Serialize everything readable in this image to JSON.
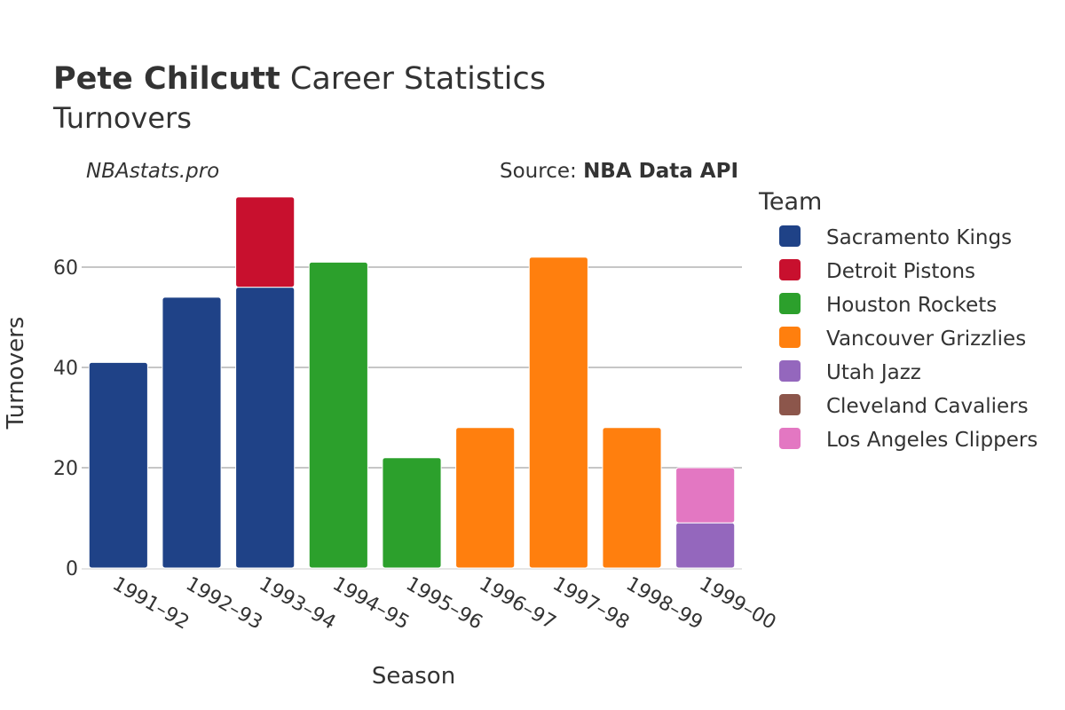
{
  "header": {
    "title_bold": "Pete Chilcutt",
    "title_rest": " Career Statistics",
    "subtitle": "Turnovers",
    "watermark": "NBAstats.pro",
    "source_prefix": "Source: ",
    "source_bold": "NBA Data API"
  },
  "legend": {
    "title": "Team"
  },
  "chart_data": {
    "type": "bar",
    "stacked": true,
    "xlabel": "Season",
    "ylabel": "Turnovers",
    "ylim": [
      0,
      75
    ],
    "yticks": [
      0,
      20,
      40,
      60
    ],
    "grid": true,
    "legend_placement": "right",
    "categories": [
      "1991–92",
      "1992–93",
      "1993–94",
      "1994–95",
      "1995–96",
      "1996–97",
      "1997–98",
      "1998–99",
      "1999–00"
    ],
    "series": [
      {
        "name": "Sacramento Kings",
        "color": "#1f4287",
        "values": [
          41,
          54,
          56,
          0,
          0,
          0,
          0,
          0,
          0
        ]
      },
      {
        "name": "Detroit Pistons",
        "color": "#c8102e",
        "values": [
          0,
          0,
          18,
          0,
          0,
          0,
          0,
          0,
          0
        ]
      },
      {
        "name": "Houston Rockets",
        "color": "#2ca02c",
        "values": [
          0,
          0,
          0,
          61,
          22,
          0,
          0,
          0,
          0
        ]
      },
      {
        "name": "Vancouver Grizzlies",
        "color": "#ff7f0e",
        "values": [
          0,
          0,
          0,
          0,
          0,
          28,
          62,
          28,
          0
        ]
      },
      {
        "name": "Utah Jazz",
        "color": "#9467bd",
        "values": [
          0,
          0,
          0,
          0,
          0,
          0,
          0,
          0,
          9
        ]
      },
      {
        "name": "Cleveland Cavaliers",
        "color": "#8c564b",
        "values": [
          0,
          0,
          0,
          0,
          0,
          0,
          0,
          0,
          0
        ]
      },
      {
        "name": "Los Angeles Clippers",
        "color": "#e377c2",
        "values": [
          0,
          0,
          0,
          0,
          0,
          0,
          0,
          0,
          11
        ]
      }
    ]
  }
}
